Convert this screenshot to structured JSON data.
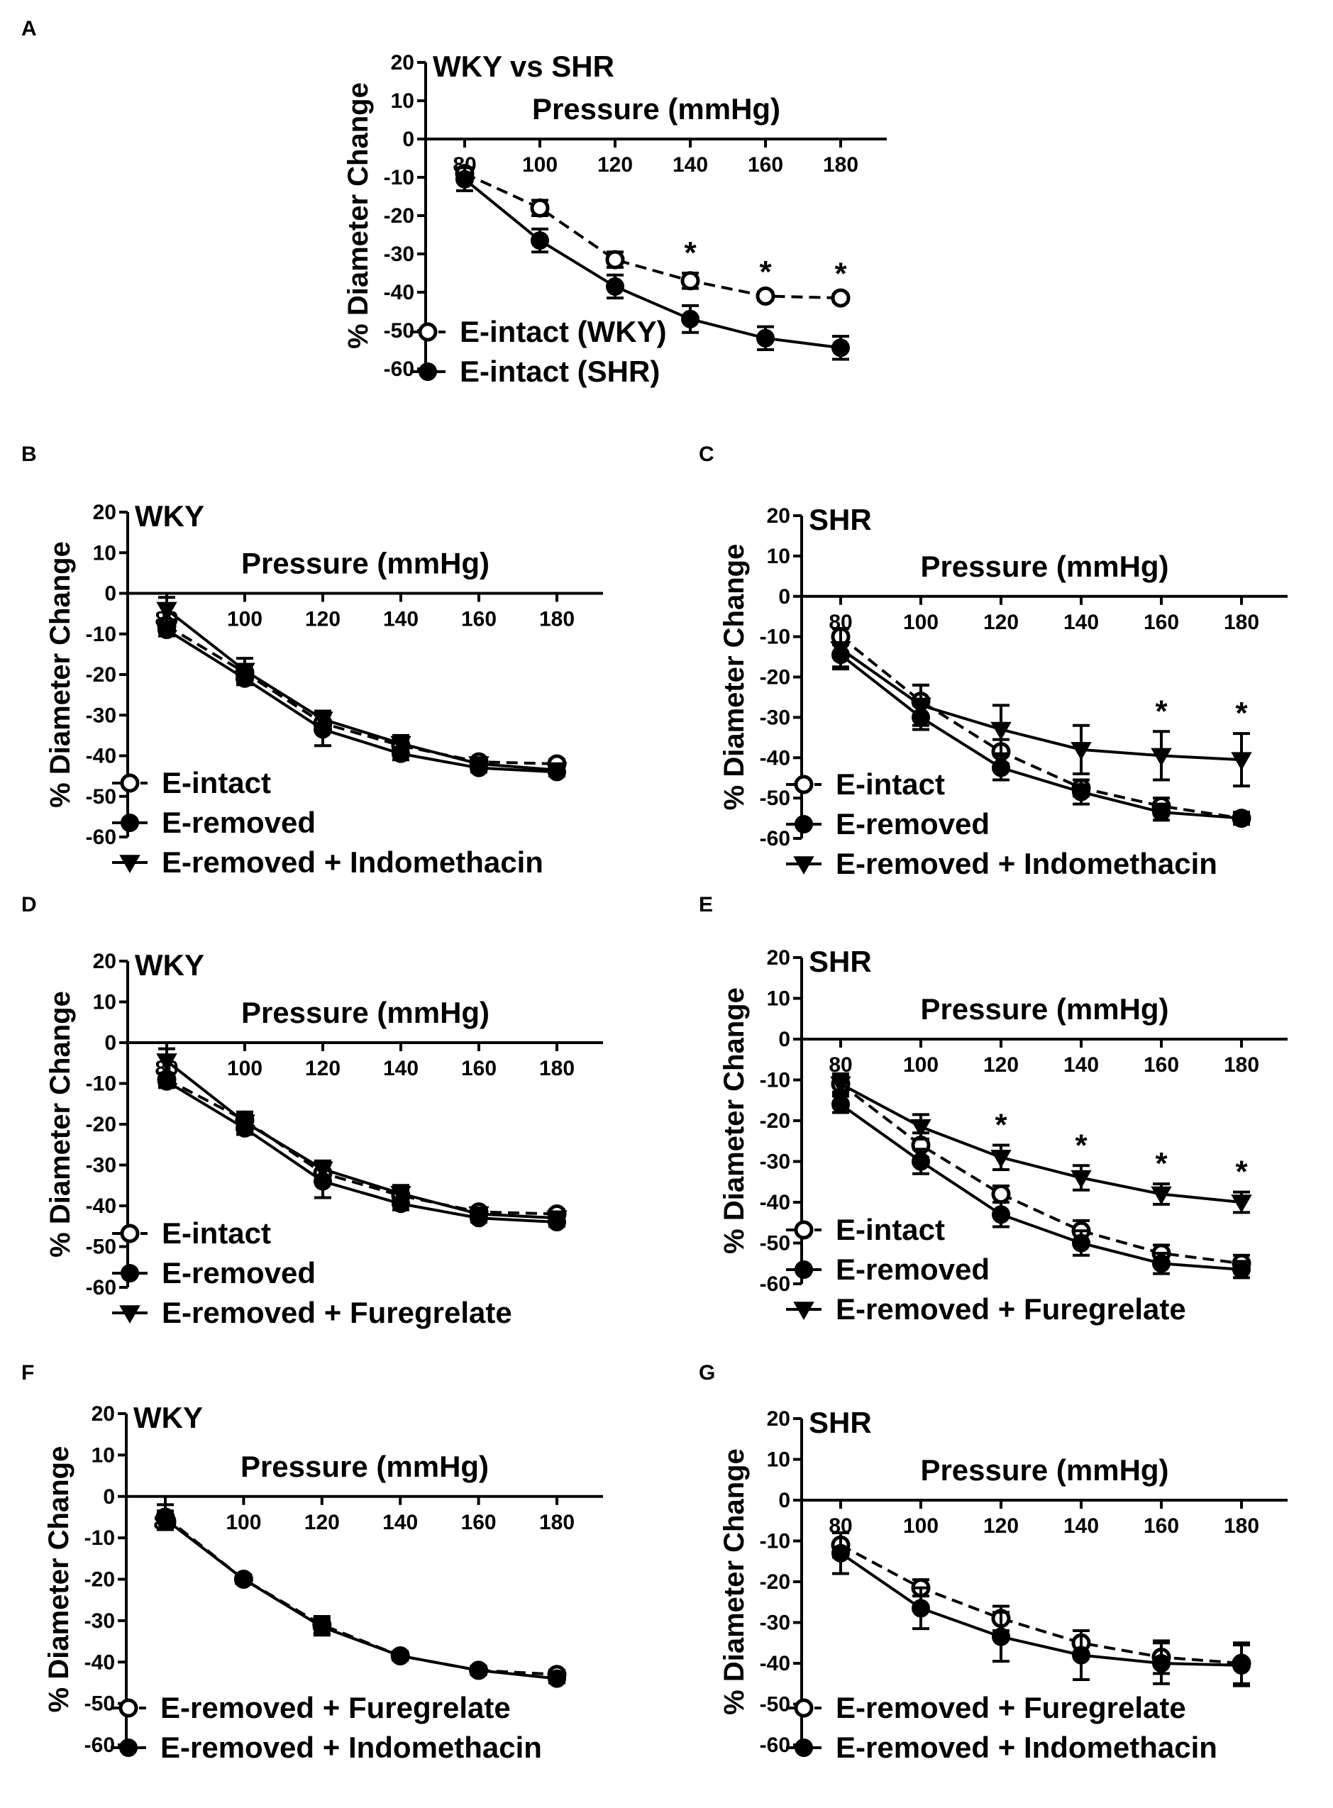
{
  "figure": {
    "colors": {
      "ink": "#000000",
      "background": "#ffffff",
      "open_marker_fill": "#ffffff"
    },
    "shared": {
      "y_axis_label": "% Diameter Change",
      "x_axis_label": "Pressure (mmHg)",
      "significance_marker": "*"
    }
  },
  "chart_data": [
    {
      "panel": "A",
      "type": "line",
      "title": "WKY vs SHR",
      "xlabel": "Pressure (mmHg)",
      "ylabel": "% Diameter Change",
      "x": [
        80,
        100,
        120,
        140,
        160,
        180
      ],
      "x_ticks": [
        "80",
        "100",
        "120",
        "140",
        "160",
        "180"
      ],
      "y_ticks": [
        "20",
        "10",
        "0",
        "-10",
        "-20",
        "-30",
        "-40",
        "-50",
        "-60"
      ],
      "ylim": [
        -60,
        20
      ],
      "grid": false,
      "legend": "bottom-left",
      "series": [
        {
          "name": "E-intact (WKY)",
          "marker": "open-circle",
          "line": "dashed",
          "values": [
            -9,
            -18,
            -31.5,
            -37,
            -41,
            -41.5
          ],
          "errors": [
            1.5,
            2,
            2,
            2,
            1,
            1
          ]
        },
        {
          "name": "E-intact (SHR)",
          "marker": "filled-circle",
          "line": "solid",
          "values": [
            -10.5,
            -26.5,
            -38.5,
            -47,
            -52,
            -54.5
          ],
          "errors": [
            3,
            3,
            3,
            3.5,
            3,
            3
          ]
        }
      ],
      "annotations": [
        {
          "x": 140,
          "text": "*"
        },
        {
          "x": 160,
          "text": "*"
        },
        {
          "x": 180,
          "text": "*"
        }
      ]
    },
    {
      "panel": "B",
      "type": "line",
      "title": "WKY",
      "xlabel": "Pressure (mmHg)",
      "ylabel": "% Diameter Change",
      "x": [
        80,
        100,
        120,
        140,
        160,
        180
      ],
      "x_ticks": [
        "80",
        "100",
        "120",
        "140",
        "160",
        "180"
      ],
      "y_ticks": [
        "20",
        "10",
        "0",
        "-10",
        "-20",
        "-30",
        "-40",
        "-50",
        "-60"
      ],
      "ylim": [
        -60,
        20
      ],
      "grid": false,
      "legend": "bottom-left",
      "series": [
        {
          "name": "E-intact",
          "marker": "open-circle",
          "line": "dashed",
          "values": [
            -8,
            -19.5,
            -32,
            -37.5,
            -41.5,
            -42
          ],
          "errors": [
            1.5,
            2,
            2,
            1.5,
            1,
            1
          ]
        },
        {
          "name": "E-removed",
          "marker": "filled-circle",
          "line": "solid",
          "values": [
            -9,
            -21,
            -33.5,
            -39.5,
            -43,
            -44
          ],
          "errors": [
            1.5,
            1.5,
            4,
            1.5,
            1,
            1
          ]
        },
        {
          "name": "E-removed + Indomethacin",
          "marker": "triangle-down",
          "line": "solid",
          "values": [
            -4,
            -19,
            -31,
            -37,
            -42,
            -43.5
          ],
          "errors": [
            3,
            3,
            2,
            2,
            1,
            1
          ]
        }
      ],
      "annotations": []
    },
    {
      "panel": "C",
      "type": "line",
      "title": "SHR",
      "xlabel": "Pressure (mmHg)",
      "ylabel": "% Diameter Change",
      "x": [
        80,
        100,
        120,
        140,
        160,
        180
      ],
      "x_ticks": [
        "80",
        "100",
        "120",
        "140",
        "160",
        "180"
      ],
      "y_ticks": [
        "20",
        "10",
        "0",
        "-10",
        "-20",
        "-30",
        "-40",
        "-50",
        "-60"
      ],
      "ylim": [
        -60,
        20
      ],
      "grid": false,
      "legend": "bottom-left",
      "series": [
        {
          "name": "E-intact",
          "marker": "open-circle",
          "line": "dashed",
          "values": [
            -10,
            -26,
            -38.5,
            -47.5,
            -52,
            -55
          ],
          "errors": [
            2,
            4,
            3,
            2,
            2,
            1.5
          ]
        },
        {
          "name": "E-removed",
          "marker": "filled-circle",
          "line": "solid",
          "values": [
            -14.5,
            -30,
            -42.5,
            -48.5,
            -53.5,
            -55
          ],
          "errors": [
            3,
            3,
            3,
            3,
            2,
            1.5
          ]
        },
        {
          "name": "E-removed + Indomethacin",
          "marker": "triangle-down",
          "line": "solid",
          "values": [
            -13,
            -27,
            -33,
            -38,
            -39.5,
            -40.5
          ],
          "errors": [
            5,
            5,
            6,
            6,
            6,
            6.5
          ]
        }
      ],
      "annotations": [
        {
          "x": 160,
          "text": "*"
        },
        {
          "x": 180,
          "text": "*"
        }
      ]
    },
    {
      "panel": "D",
      "type": "line",
      "title": "WKY",
      "xlabel": "Pressure (mmHg)",
      "ylabel": "% Diameter Change",
      "x": [
        80,
        100,
        120,
        140,
        160,
        180
      ],
      "x_ticks": [
        "80",
        "100",
        "120",
        "140",
        "160",
        "180"
      ],
      "y_ticks": [
        "20",
        "10",
        "0",
        "-10",
        "-20",
        "-30",
        "-40",
        "-50",
        "-60"
      ],
      "ylim": [
        -60,
        20
      ],
      "grid": false,
      "legend": "bottom-left",
      "series": [
        {
          "name": "E-intact",
          "marker": "open-circle",
          "line": "dashed",
          "values": [
            -9,
            -19,
            -32,
            -37.5,
            -41.5,
            -42
          ],
          "errors": [
            1.5,
            2,
            2,
            1.5,
            1,
            1
          ]
        },
        {
          "name": "E-removed",
          "marker": "filled-circle",
          "line": "solid",
          "values": [
            -9.5,
            -21,
            -34,
            -39.5,
            -43,
            -44
          ],
          "errors": [
            1.5,
            1.5,
            4,
            1.5,
            1,
            1
          ]
        },
        {
          "name": "E-removed + Furegrelate",
          "marker": "triangle-down",
          "line": "solid",
          "values": [
            -4.5,
            -19.5,
            -31,
            -37,
            -42,
            -43
          ],
          "errors": [
            3,
            2,
            2,
            2,
            1,
            1
          ]
        }
      ],
      "annotations": []
    },
    {
      "panel": "E",
      "type": "line",
      "title": "SHR",
      "xlabel": "Pressure (mmHg)",
      "ylabel": "% Diameter Change",
      "x": [
        80,
        100,
        120,
        140,
        160,
        180
      ],
      "x_ticks": [
        "80",
        "100",
        "120",
        "140",
        "160",
        "180"
      ],
      "y_ticks": [
        "20",
        "10",
        "0",
        "-10",
        "-20",
        "-30",
        "-40",
        "-50",
        "-60"
      ],
      "ylim": [
        -60,
        20
      ],
      "grid": false,
      "legend": "bottom-left",
      "series": [
        {
          "name": "E-intact",
          "marker": "open-circle",
          "line": "dashed",
          "values": [
            -11,
            -26,
            -38,
            -47,
            -52.5,
            -55
          ],
          "errors": [
            2,
            3,
            2,
            2.5,
            2,
            2
          ]
        },
        {
          "name": "E-removed",
          "marker": "filled-circle",
          "line": "solid",
          "values": [
            -16,
            -30,
            -43,
            -50,
            -55,
            -56.5
          ],
          "errors": [
            2,
            3,
            3,
            3,
            2.5,
            2
          ]
        },
        {
          "name": "E-removed + Furegrelate",
          "marker": "triangle-down",
          "line": "solid",
          "values": [
            -11,
            -21.5,
            -29,
            -34,
            -38,
            -40
          ],
          "errors": [
            2.5,
            3,
            3,
            3,
            2.5,
            2.5
          ]
        }
      ],
      "annotations": [
        {
          "x": 120,
          "text": "*"
        },
        {
          "x": 140,
          "text": "*"
        },
        {
          "x": 160,
          "text": "*"
        },
        {
          "x": 180,
          "text": "*"
        }
      ]
    },
    {
      "panel": "F",
      "type": "line",
      "title": "WKY",
      "xlabel": "Pressure (mmHg)",
      "ylabel": "% Diameter Change",
      "x": [
        80,
        100,
        120,
        140,
        160,
        180
      ],
      "x_ticks": [
        "80",
        "100",
        "120",
        "140",
        "160",
        "180"
      ],
      "y_ticks": [
        "20",
        "10",
        "0",
        "-10",
        "-20",
        "-30",
        "-40",
        "-50",
        "-60"
      ],
      "ylim": [
        -60,
        20
      ],
      "grid": false,
      "legend": "bottom-left",
      "series": [
        {
          "name": "E-removed + Furegrelate",
          "marker": "open-circle",
          "line": "dashed",
          "values": [
            -5,
            -20,
            -31,
            -38.5,
            -42,
            -43
          ],
          "errors": [
            3,
            1,
            2,
            1,
            1,
            1
          ]
        },
        {
          "name": "E-removed + Indomethacin",
          "marker": "filled-circle",
          "line": "solid",
          "values": [
            -5.5,
            -20,
            -31.5,
            -38.5,
            -42,
            -44
          ],
          "errors": [
            2,
            1,
            2,
            1,
            1,
            1
          ]
        }
      ],
      "annotations": []
    },
    {
      "panel": "G",
      "type": "line",
      "title": "SHR",
      "xlabel": "Pressure (mmHg)",
      "ylabel": "% Diameter Change",
      "x": [
        80,
        100,
        120,
        140,
        160,
        180
      ],
      "x_ticks": [
        "80",
        "100",
        "120",
        "140",
        "160",
        "180"
      ],
      "y_ticks": [
        "20",
        "10",
        "0",
        "-10",
        "-20",
        "-30",
        "-40",
        "-50",
        "-60"
      ],
      "ylim": [
        -60,
        20
      ],
      "grid": false,
      "legend": "bottom-left",
      "series": [
        {
          "name": "E-removed + Furegrelate",
          "marker": "open-circle",
          "line": "dashed",
          "values": [
            -11,
            -21.5,
            -29,
            -35,
            -38.5,
            -40
          ],
          "errors": [
            3,
            2,
            3,
            3,
            4,
            5
          ]
        },
        {
          "name": "E-removed + Indomethacin",
          "marker": "filled-circle",
          "line": "solid",
          "values": [
            -13,
            -26.5,
            -33.5,
            -38,
            -40,
            -40.5
          ],
          "errors": [
            5,
            5,
            6,
            6,
            5,
            5
          ]
        }
      ],
      "annotations": []
    }
  ]
}
